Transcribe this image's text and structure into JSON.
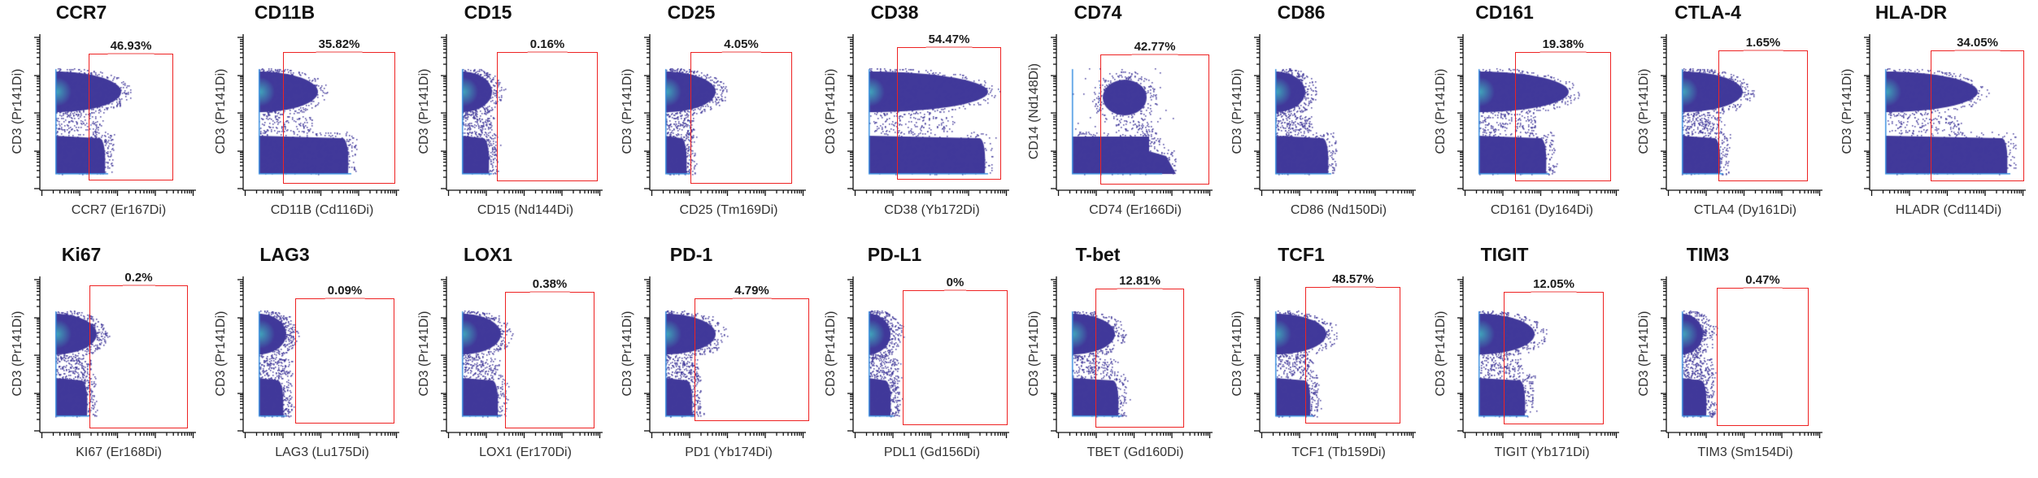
{
  "chart_data": [
    {
      "type": "scatter",
      "title": "CCR7",
      "xlabel": "CCR7 (Er167Di)",
      "ylabel": "CD3 (Pr141Di)",
      "gate_percent": "46.93%",
      "x_scale": "log",
      "y_scale": "log"
    },
    {
      "type": "scatter",
      "title": "CD11B",
      "xlabel": "CD11B (Cd116Di)",
      "ylabel": "CD3 (Pr141Di)",
      "gate_percent": "35.82%",
      "x_scale": "log",
      "y_scale": "log"
    },
    {
      "type": "scatter",
      "title": "CD15",
      "xlabel": "CD15 (Nd144Di)",
      "ylabel": "CD3 (Pr141Di)",
      "gate_percent": "0.16%",
      "x_scale": "log",
      "y_scale": "log"
    },
    {
      "type": "scatter",
      "title": "CD25",
      "xlabel": "CD25 (Tm169Di)",
      "ylabel": "CD3 (Pr141Di)",
      "gate_percent": "4.05%",
      "x_scale": "log",
      "y_scale": "log"
    },
    {
      "type": "scatter",
      "title": "CD38",
      "xlabel": "CD38 (Yb172Di)",
      "ylabel": "CD3 (Pr141Di)",
      "gate_percent": "54.47%",
      "x_scale": "log",
      "y_scale": "log"
    },
    {
      "type": "scatter",
      "title": "CD74",
      "xlabel": "CD74 (Er166Di)",
      "ylabel": "CD14 (Nd148Di)",
      "gate_percent": "42.77%",
      "x_scale": "log",
      "y_scale": "log"
    },
    {
      "type": "scatter",
      "title": "CD86",
      "xlabel": "CD86 (Nd150Di)",
      "ylabel": "CD3 (Pr141Di)",
      "gate_percent": "",
      "x_scale": "log",
      "y_scale": "log"
    },
    {
      "type": "scatter",
      "title": "CD161",
      "xlabel": "CD161 (Dy164Di)",
      "ylabel": "CD3 (Pr141Di)",
      "gate_percent": "19.38%",
      "x_scale": "log",
      "y_scale": "log"
    },
    {
      "type": "scatter",
      "title": "CTLA-4",
      "xlabel": "CTLA4 (Dy161Di)",
      "ylabel": "CD3 (Pr141Di)",
      "gate_percent": "1.65%",
      "x_scale": "log",
      "y_scale": "log"
    },
    {
      "type": "scatter",
      "title": "HLA-DR",
      "xlabel": "HLADR (Cd114Di)",
      "ylabel": "CD3 (Pr141Di)",
      "gate_percent": "34.05%",
      "x_scale": "log",
      "y_scale": "log"
    },
    {
      "type": "scatter",
      "title": "Ki67",
      "xlabel": "KI67 (Er168Di)",
      "ylabel": "CD3 (Pr141Di)",
      "gate_percent": "0.2%",
      "x_scale": "log",
      "y_scale": "log"
    },
    {
      "type": "scatter",
      "title": "LAG3",
      "xlabel": "LAG3 (Lu175Di)",
      "ylabel": "CD3 (Pr141Di)",
      "gate_percent": "0.09%",
      "x_scale": "log",
      "y_scale": "log"
    },
    {
      "type": "scatter",
      "title": "LOX1",
      "xlabel": "LOX1 (Er170Di)",
      "ylabel": "CD3 (Pr141Di)",
      "gate_percent": "0.38%",
      "x_scale": "log",
      "y_scale": "log"
    },
    {
      "type": "scatter",
      "title": "PD-1",
      "xlabel": "PD1 (Yb174Di)",
      "ylabel": "CD3 (Pr141Di)",
      "gate_percent": "4.79%",
      "x_scale": "log",
      "y_scale": "log"
    },
    {
      "type": "scatter",
      "title": "PD-L1",
      "xlabel": "PDL1 (Gd156Di)",
      "ylabel": "CD3 (Pr141Di)",
      "gate_percent": "0%",
      "x_scale": "log",
      "y_scale": "log"
    },
    {
      "type": "scatter",
      "title": "T-bet",
      "xlabel": "TBET (Gd160Di)",
      "ylabel": "CD3 (Pr141Di)",
      "gate_percent": "12.81%",
      "x_scale": "log",
      "y_scale": "log"
    },
    {
      "type": "scatter",
      "title": "TCF1",
      "xlabel": "TCF1 (Tb159Di)",
      "ylabel": "CD3 (Pr141Di)",
      "gate_percent": "48.57%",
      "x_scale": "log",
      "y_scale": "log"
    },
    {
      "type": "scatter",
      "title": "TIGIT",
      "xlabel": "TIGIT (Yb171Di)",
      "ylabel": "CD3 (Pr141Di)",
      "gate_percent": "12.05%",
      "x_scale": "log",
      "y_scale": "log"
    },
    {
      "type": "scatter",
      "title": "TIM3",
      "xlabel": "TIM3 (Sm154Di)",
      "ylabel": "CD3 (Pr141Di)",
      "gate_percent": "0.47%",
      "x_scale": "log",
      "y_scale": "log"
    }
  ],
  "colors": {
    "density": "#41399a",
    "density_high": "#3fd0c8",
    "gate": "#ee2222"
  }
}
